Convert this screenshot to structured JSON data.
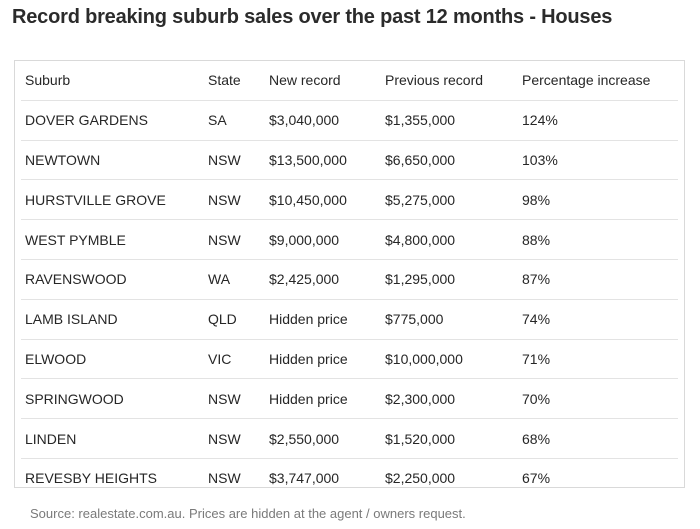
{
  "title": "Record breaking suburb sales over the past 12 months - Houses",
  "table": {
    "headers": [
      "Suburb",
      "State",
      "New record",
      "Previous record",
      "Percentage increase"
    ],
    "rows": [
      [
        "DOVER GARDENS",
        "SA",
        "$3,040,000",
        "$1,355,000",
        "124%"
      ],
      [
        "NEWTOWN",
        "NSW",
        "$13,500,000",
        "$6,650,000",
        "103%"
      ],
      [
        "HURSTVILLE GROVE",
        "NSW",
        "$10,450,000",
        "$5,275,000",
        "98%"
      ],
      [
        "WEST PYMBLE",
        "NSW",
        "$9,000,000",
        "$4,800,000",
        "88%"
      ],
      [
        "RAVENSWOOD",
        "WA",
        "$2,425,000",
        "$1,295,000",
        "87%"
      ],
      [
        "LAMB ISLAND",
        "QLD",
        "Hidden price",
        "$775,000",
        "74%"
      ],
      [
        "ELWOOD",
        "VIC",
        "Hidden price",
        "$10,000,000",
        "71%"
      ],
      [
        "SPRINGWOOD",
        "NSW",
        "Hidden price",
        "$2,300,000",
        "70%"
      ],
      [
        "LINDEN",
        "NSW",
        "$2,550,000",
        "$1,520,000",
        "68%"
      ],
      [
        "REVESBY HEIGHTS",
        "NSW",
        "$3,747,000",
        "$2,250,000",
        "67%"
      ]
    ]
  },
  "source": "Source: realestate.com.au. Prices are hidden at the agent / owners request."
}
